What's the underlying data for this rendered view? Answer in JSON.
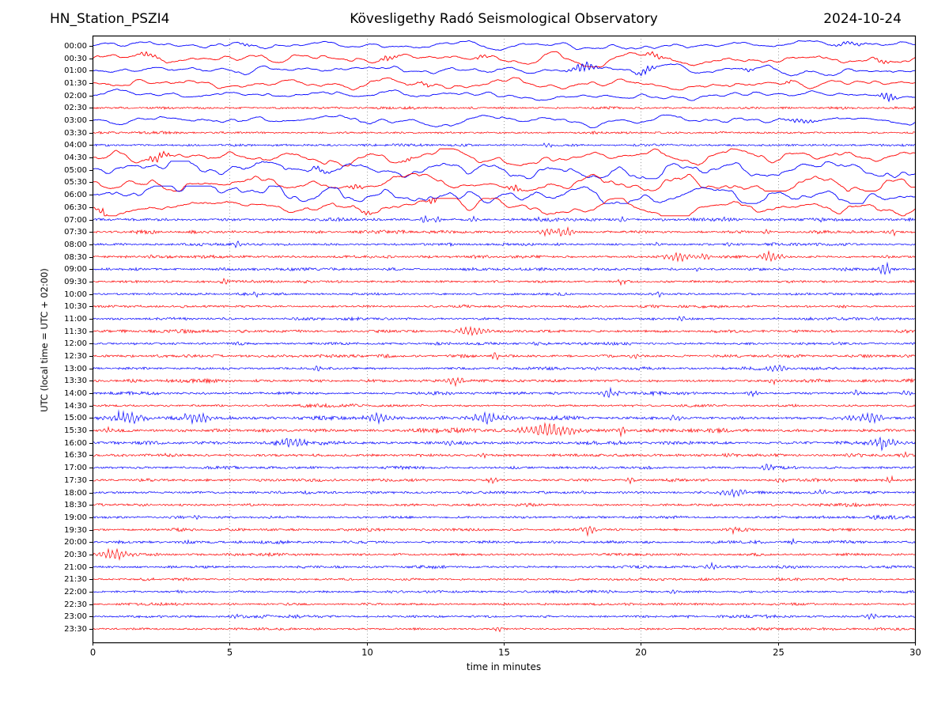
{
  "header": {
    "station": "HN_Station_PSZI4",
    "title": "Kövesligethy Radó Seismological Observatory",
    "date": "2024-10-24"
  },
  "chart_data": {
    "type": "line",
    "variant": "helicorder_dayplot",
    "title": "Kövesligethy Radó Seismological Observatory",
    "station": "HN_Station_PSZI4",
    "date": "2024-10-24",
    "xlabel": "time in minutes",
    "ylabel": "UTC (local time = UTC + 02:00)",
    "x_range": [
      0,
      30
    ],
    "x_ticks": [
      0,
      5,
      10,
      15,
      20,
      25,
      30
    ],
    "grid_x": [
      5,
      10,
      15,
      20,
      25
    ],
    "grid_style": "vertical-dotted",
    "legend_position": "none",
    "minutes_per_row": 30,
    "colors": {
      "trace_even": "#0000FF",
      "trace_odd": "#FF0000",
      "grid": "#888888",
      "frame": "#000000",
      "background": "#FFFFFF"
    },
    "events_format": "[start_minute, duration_minutes, relative_amplitude]",
    "rows": [
      {
        "label": "00:00",
        "color": "#0000FF",
        "kind": "smooth",
        "amp": 1.5,
        "events": [
          [
            5.6,
            0.4,
            0.7
          ],
          [
            27.6,
            1.2,
            0.8
          ]
        ]
      },
      {
        "label": "00:30",
        "color": "#FF0000",
        "kind": "smooth",
        "amp": 2.0,
        "events": [
          [
            2.0,
            0.8,
            0.9
          ],
          [
            10.8,
            0.6,
            1.0
          ],
          [
            14.2,
            0.5,
            0.8
          ],
          [
            20.5,
            0.8,
            1.0
          ],
          [
            28.8,
            0.5,
            0.9
          ]
        ]
      },
      {
        "label": "01:00",
        "color": "#0000FF",
        "kind": "smooth",
        "amp": 1.7,
        "events": [
          [
            17.9,
            0.9,
            2.0
          ],
          [
            20.2,
            0.7,
            1.5
          ],
          [
            23.9,
            0.4,
            0.8
          ]
        ]
      },
      {
        "label": "01:30",
        "color": "#FF0000",
        "kind": "smooth",
        "amp": 1.8,
        "events": [
          [
            12.2,
            0.5,
            0.9
          ],
          [
            25.4,
            0.4,
            0.7
          ]
        ]
      },
      {
        "label": "02:00",
        "color": "#0000FF",
        "kind": "smooth",
        "amp": 1.5,
        "events": [
          [
            29.0,
            0.6,
            1.7
          ]
        ]
      },
      {
        "label": "02:30",
        "color": "#FF0000",
        "kind": "fuzz",
        "amp": 1.2,
        "events": []
      },
      {
        "label": "03:00",
        "color": "#0000FF",
        "kind": "smooth",
        "amp": 1.7,
        "events": [
          [
            25.8,
            1.2,
            0.9
          ]
        ]
      },
      {
        "label": "03:30",
        "color": "#FF0000",
        "kind": "fuzz",
        "amp": 1.2,
        "events": []
      },
      {
        "label": "04:00",
        "color": "#0000FF",
        "kind": "fuzz",
        "amp": 1.3,
        "events": [
          [
            16.6,
            0.5,
            0.9
          ]
        ]
      },
      {
        "label": "04:30",
        "color": "#FF0000",
        "kind": "smooth",
        "amp": 2.4,
        "events": [
          [
            2.4,
            0.9,
            1.6
          ],
          [
            11.5,
            0.4,
            1.1
          ]
        ]
      },
      {
        "label": "05:00",
        "color": "#0000FF",
        "kind": "smooth",
        "amp": 3.0,
        "events": [
          [
            8.3,
            0.6,
            1.2
          ]
        ]
      },
      {
        "label": "05:30",
        "color": "#FF0000",
        "kind": "smooth",
        "amp": 2.8,
        "events": [
          [
            9.6,
            0.5,
            1.2
          ],
          [
            15.4,
            0.6,
            1.1
          ]
        ]
      },
      {
        "label": "06:00",
        "color": "#0000FF",
        "kind": "smooth",
        "amp": 3.0,
        "events": []
      },
      {
        "label": "06:30",
        "color": "#FF0000",
        "kind": "smooth",
        "amp": 2.6,
        "events": [
          [
            0.4,
            0.5,
            1.7
          ],
          [
            10.0,
            0.3,
            1.4
          ],
          [
            12.4,
            0.25,
            3.0
          ]
        ]
      },
      {
        "label": "07:00",
        "color": "#0000FF",
        "kind": "fuzz",
        "amp": 1.5,
        "events": [
          [
            12.1,
            0.3,
            2.1
          ],
          [
            12.6,
            0.25,
            1.5
          ],
          [
            13.9,
            0.3,
            1.4
          ],
          [
            16.3,
            0.2,
            1.0
          ],
          [
            19.3,
            0.25,
            1.4
          ],
          [
            20.8,
            0.2,
            1.2
          ],
          [
            23.0,
            0.2,
            0.9
          ],
          [
            26.6,
            0.2,
            0.9
          ]
        ]
      },
      {
        "label": "07:30",
        "color": "#FF0000",
        "kind": "fuzz",
        "amp": 1.4,
        "events": [
          [
            16.6,
            0.6,
            1.6
          ],
          [
            17.2,
            0.7,
            2.0
          ],
          [
            24.6,
            0.25,
            1.2
          ],
          [
            29.2,
            0.3,
            1.5
          ]
        ]
      },
      {
        "label": "08:00",
        "color": "#0000FF",
        "kind": "fuzz",
        "amp": 1.4,
        "events": [
          [
            5.3,
            0.25,
            1.5
          ],
          [
            20.6,
            0.3,
            1.1
          ],
          [
            23.2,
            0.25,
            1.0
          ]
        ]
      },
      {
        "label": "08:30",
        "color": "#FF0000",
        "kind": "fuzz",
        "amp": 1.5,
        "events": [
          [
            21.4,
            1.2,
            1.8
          ],
          [
            22.4,
            0.5,
            1.4
          ],
          [
            24.7,
            0.9,
            1.8
          ],
          [
            28.9,
            0.3,
            1.1
          ]
        ]
      },
      {
        "label": "09:00",
        "color": "#0000FF",
        "kind": "fuzz",
        "amp": 1.4,
        "events": [
          [
            22.1,
            0.2,
            1.1
          ],
          [
            28.9,
            0.5,
            2.5
          ]
        ]
      },
      {
        "label": "09:30",
        "color": "#FF0000",
        "kind": "fuzz",
        "amp": 1.4,
        "events": [
          [
            4.8,
            0.3,
            1.7
          ],
          [
            19.3,
            0.25,
            1.1
          ]
        ]
      },
      {
        "label": "10:00",
        "color": "#0000FF",
        "kind": "fuzz",
        "amp": 1.3,
        "events": [
          [
            5.9,
            0.3,
            1.5
          ],
          [
            20.7,
            0.3,
            1.2
          ]
        ]
      },
      {
        "label": "10:30",
        "color": "#FF0000",
        "kind": "fuzz",
        "amp": 1.3,
        "events": []
      },
      {
        "label": "11:00",
        "color": "#0000FF",
        "kind": "fuzz",
        "amp": 1.4,
        "events": [
          [
            21.5,
            0.3,
            1.3
          ],
          [
            28.6,
            0.3,
            1.0
          ]
        ]
      },
      {
        "label": "11:30",
        "color": "#FF0000",
        "kind": "fuzz",
        "amp": 1.5,
        "events": [
          [
            13.9,
            1.4,
            1.7
          ]
        ]
      },
      {
        "label": "12:00",
        "color": "#0000FF",
        "kind": "fuzz",
        "amp": 1.4,
        "events": []
      },
      {
        "label": "12:30",
        "color": "#FF0000",
        "kind": "fuzz",
        "amp": 1.4,
        "events": [
          [
            14.7,
            0.25,
            3.0
          ],
          [
            19.8,
            0.6,
            1.0
          ]
        ]
      },
      {
        "label": "13:00",
        "color": "#0000FF",
        "kind": "fuzz",
        "amp": 1.4,
        "events": [
          [
            8.2,
            0.3,
            1.9
          ],
          [
            18.4,
            0.2,
            1.1
          ],
          [
            25.0,
            1.0,
            1.4
          ]
        ]
      },
      {
        "label": "13:30",
        "color": "#FF0000",
        "kind": "fuzz",
        "amp": 1.5,
        "events": [
          [
            13.2,
            0.9,
            1.8
          ],
          [
            24.8,
            0.3,
            1.3
          ]
        ]
      },
      {
        "label": "14:00",
        "color": "#0000FF",
        "kind": "fuzz",
        "amp": 1.5,
        "events": [
          [
            18.9,
            0.8,
            1.6
          ],
          [
            24.1,
            0.4,
            1.1
          ],
          [
            27.9,
            0.4,
            1.2
          ],
          [
            29.7,
            0.3,
            1.4
          ]
        ]
      },
      {
        "label": "14:30",
        "color": "#FF0000",
        "kind": "fuzz",
        "amp": 1.3,
        "events": []
      },
      {
        "label": "15:00",
        "color": "#0000FF",
        "kind": "fuzz",
        "amp": 1.7,
        "events": [
          [
            1.2,
            1.6,
            2.2
          ],
          [
            3.8,
            1.2,
            2.0
          ],
          [
            10.4,
            1.0,
            2.0
          ],
          [
            14.4,
            1.4,
            1.7
          ],
          [
            21.3,
            0.5,
            1.1
          ],
          [
            28.3,
            1.2,
            1.9
          ]
        ]
      },
      {
        "label": "15:30",
        "color": "#FF0000",
        "kind": "fuzz",
        "amp": 1.8,
        "events": [
          [
            0.5,
            0.6,
            1.3
          ],
          [
            16.7,
            2.0,
            2.8
          ],
          [
            19.3,
            0.4,
            1.7
          ]
        ]
      },
      {
        "label": "16:00",
        "color": "#0000FF",
        "kind": "fuzz",
        "amp": 1.8,
        "events": [
          [
            7.3,
            1.0,
            1.8
          ],
          [
            13.0,
            0.4,
            1.0
          ],
          [
            28.9,
            1.2,
            2.2
          ]
        ]
      },
      {
        "label": "16:30",
        "color": "#FF0000",
        "kind": "fuzz",
        "amp": 1.6,
        "events": [
          [
            14.2,
            0.4,
            1.0
          ],
          [
            29.6,
            0.3,
            1.2
          ]
        ]
      },
      {
        "label": "17:00",
        "color": "#0000FF",
        "kind": "fuzz",
        "amp": 1.5,
        "events": [
          [
            24.6,
            0.5,
            1.6
          ]
        ]
      },
      {
        "label": "17:30",
        "color": "#FF0000",
        "kind": "fuzz",
        "amp": 1.5,
        "events": [
          [
            14.6,
            0.4,
            1.1
          ],
          [
            19.6,
            0.4,
            1.1
          ],
          [
            25.1,
            0.4,
            1.0
          ],
          [
            29.1,
            0.4,
            1.2
          ]
        ]
      },
      {
        "label": "18:00",
        "color": "#0000FF",
        "kind": "fuzz",
        "amp": 1.5,
        "events": [
          [
            23.4,
            1.0,
            1.8
          ],
          [
            26.6,
            0.4,
            1.1
          ]
        ]
      },
      {
        "label": "18:30",
        "color": "#FF0000",
        "kind": "fuzz",
        "amp": 1.4,
        "events": []
      },
      {
        "label": "19:00",
        "color": "#0000FF",
        "kind": "fuzz",
        "amp": 1.4,
        "events": [
          [
            3.8,
            0.3,
            1.1
          ]
        ]
      },
      {
        "label": "19:30",
        "color": "#FF0000",
        "kind": "fuzz",
        "amp": 1.4,
        "events": [
          [
            18.1,
            0.5,
            1.9
          ],
          [
            23.4,
            0.3,
            1.1
          ]
        ]
      },
      {
        "label": "20:00",
        "color": "#0000FF",
        "kind": "fuzz",
        "amp": 1.4,
        "events": [
          [
            25.6,
            0.3,
            1.0
          ]
        ]
      },
      {
        "label": "20:30",
        "color": "#FF0000",
        "kind": "fuzz",
        "amp": 1.4,
        "events": [
          [
            0.8,
            1.4,
            1.9
          ]
        ]
      },
      {
        "label": "21:00",
        "color": "#0000FF",
        "kind": "fuzz",
        "amp": 1.4,
        "events": [
          [
            22.6,
            0.6,
            1.6
          ],
          [
            27.2,
            0.3,
            1.0
          ]
        ]
      },
      {
        "label": "21:30",
        "color": "#FF0000",
        "kind": "fuzz",
        "amp": 1.2,
        "events": []
      },
      {
        "label": "22:00",
        "color": "#0000FF",
        "kind": "fuzz",
        "amp": 1.3,
        "events": [
          [
            21.2,
            0.3,
            1.0
          ]
        ]
      },
      {
        "label": "22:30",
        "color": "#FF0000",
        "kind": "fuzz",
        "amp": 1.2,
        "events": []
      },
      {
        "label": "23:00",
        "color": "#0000FF",
        "kind": "fuzz",
        "amp": 1.3,
        "events": [
          [
            5.2,
            0.3,
            1.0
          ],
          [
            28.4,
            0.5,
            1.1
          ]
        ]
      },
      {
        "label": "23:30",
        "color": "#FF0000",
        "kind": "fuzz",
        "amp": 1.3,
        "events": [
          [
            14.8,
            0.3,
            1.1
          ]
        ]
      }
    ]
  }
}
